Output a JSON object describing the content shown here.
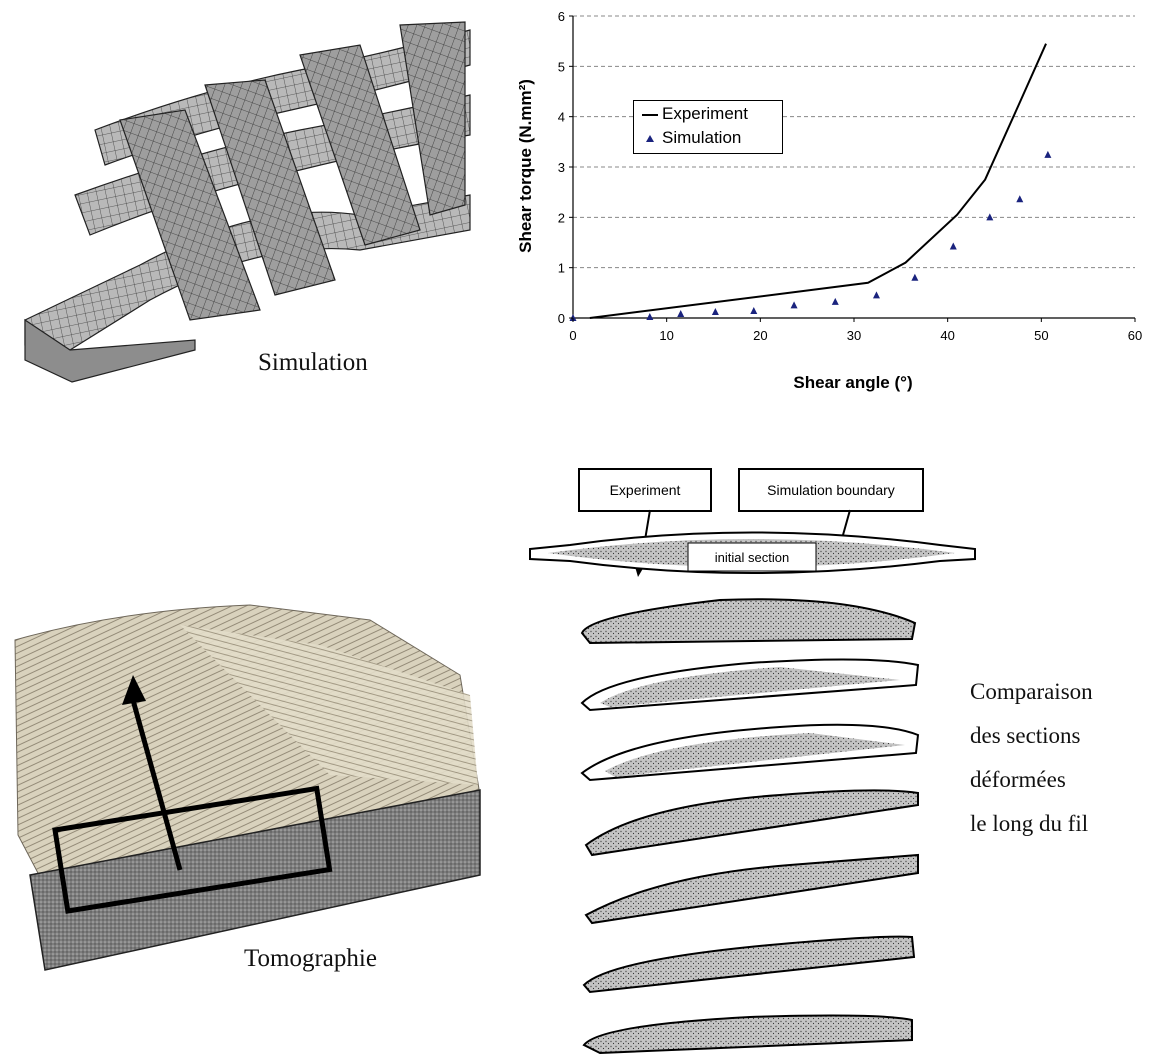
{
  "captions": {
    "simulation": "Simulation",
    "tomography": "Tomographie"
  },
  "comparison_note": {
    "lines": [
      "Comparaison",
      "des sections",
      "déformées",
      "le long du fil"
    ]
  },
  "section_figure": {
    "experiment_label": "Experiment",
    "simulation_boundary_label": "Simulation boundary",
    "initial_section_label": "initial section"
  },
  "colors": {
    "experiment_line": "#000000",
    "simulation_marker": "#1a237e",
    "mesh_fill": "#a9a9a9",
    "tomo_fill": "#d8cfb8"
  },
  "chart_data": {
    "type": "line",
    "xlabel": "Shear angle (°)",
    "ylabel": "Shear torque (N.mm²)",
    "xlim": [
      0,
      60
    ],
    "ylim": [
      0,
      6
    ],
    "xticks": [
      "0",
      "10",
      "20",
      "30",
      "40",
      "50",
      "60"
    ],
    "yticks": [
      "0",
      "1",
      "2",
      "3",
      "4",
      "5",
      "6"
    ],
    "grid": "horizontal dashed",
    "legend_position": "upper-left",
    "series": [
      {
        "name": "Experiment",
        "style": "line",
        "x": [
          1.8,
          31.5,
          35.5,
          41,
          44,
          47.5,
          50.5
        ],
        "y": [
          0,
          0.7,
          1.1,
          2.05,
          2.75,
          4.2,
          5.45
        ]
      },
      {
        "name": "Simulation",
        "style": "markers",
        "x": [
          0,
          8.2,
          11.5,
          15.2,
          19.3,
          23.6,
          28,
          32.4,
          36.5,
          40.6,
          44.5,
          47.7,
          50.7
        ],
        "y": [
          0,
          0.02,
          0.08,
          0.12,
          0.14,
          0.25,
          0.32,
          0.45,
          0.8,
          1.42,
          2.0,
          2.36,
          3.24
        ]
      }
    ]
  }
}
